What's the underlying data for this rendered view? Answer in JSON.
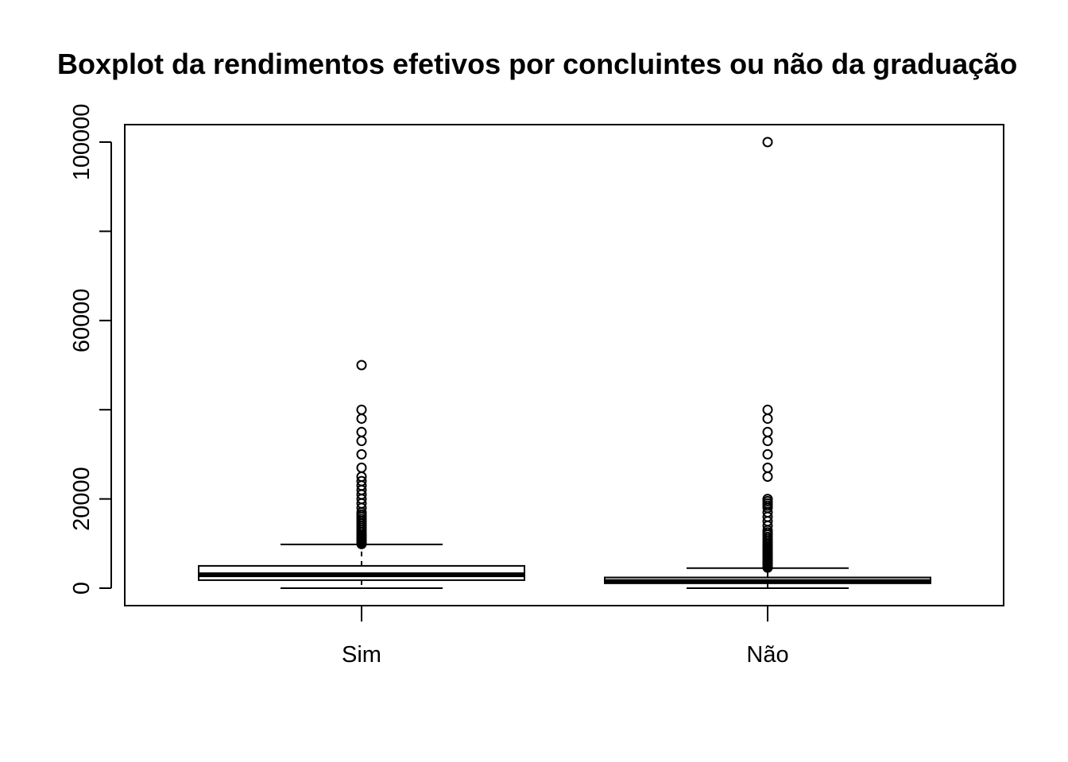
{
  "chart_data": {
    "type": "boxplot",
    "title": "Boxplot da rendimentos efetivos por concluintes ou não da graduação",
    "xlabel": "",
    "ylabel": "",
    "categories": [
      "Sim",
      "Não"
    ],
    "y_ticks": [
      0,
      20000,
      40000,
      60000,
      80000,
      100000
    ],
    "y_tick_labels": [
      "0",
      "20000",
      "",
      "60000",
      "",
      "100000"
    ],
    "ylim": [
      -4000,
      104000
    ],
    "grid": false,
    "boxes": [
      {
        "name": "Sim",
        "whisker_low": 0,
        "q1": 1800,
        "median": 3000,
        "q3": 5000,
        "whisker_high": 9800,
        "outliers": [
          9900,
          10000,
          10100,
          10200,
          10300,
          10400,
          10500,
          10700,
          10900,
          11000,
          11200,
          11500,
          11800,
          12000,
          12500,
          13000,
          13500,
          14000,
          14500,
          15000,
          15500,
          16000,
          16500,
          17000,
          18000,
          19000,
          20000,
          21000,
          22000,
          23000,
          24000,
          25000,
          27000,
          30000,
          33000,
          35000,
          38000,
          40000,
          50000
        ]
      },
      {
        "name": "Não",
        "whisker_low": 0,
        "q1": 1100,
        "median": 1500,
        "q3": 2400,
        "whisker_high": 4500,
        "outliers": [
          4600,
          4700,
          4800,
          4900,
          5000,
          5200,
          5400,
          5600,
          5800,
          6000,
          6300,
          6600,
          7000,
          7300,
          7600,
          8000,
          8400,
          8800,
          9200,
          9600,
          10000,
          10500,
          11000,
          11500,
          12000,
          12500,
          13000,
          14000,
          15000,
          16000,
          17000,
          18000,
          18500,
          19000,
          19500,
          20000,
          25000,
          27000,
          30000,
          33000,
          35000,
          38000,
          40000,
          100000
        ]
      }
    ]
  }
}
